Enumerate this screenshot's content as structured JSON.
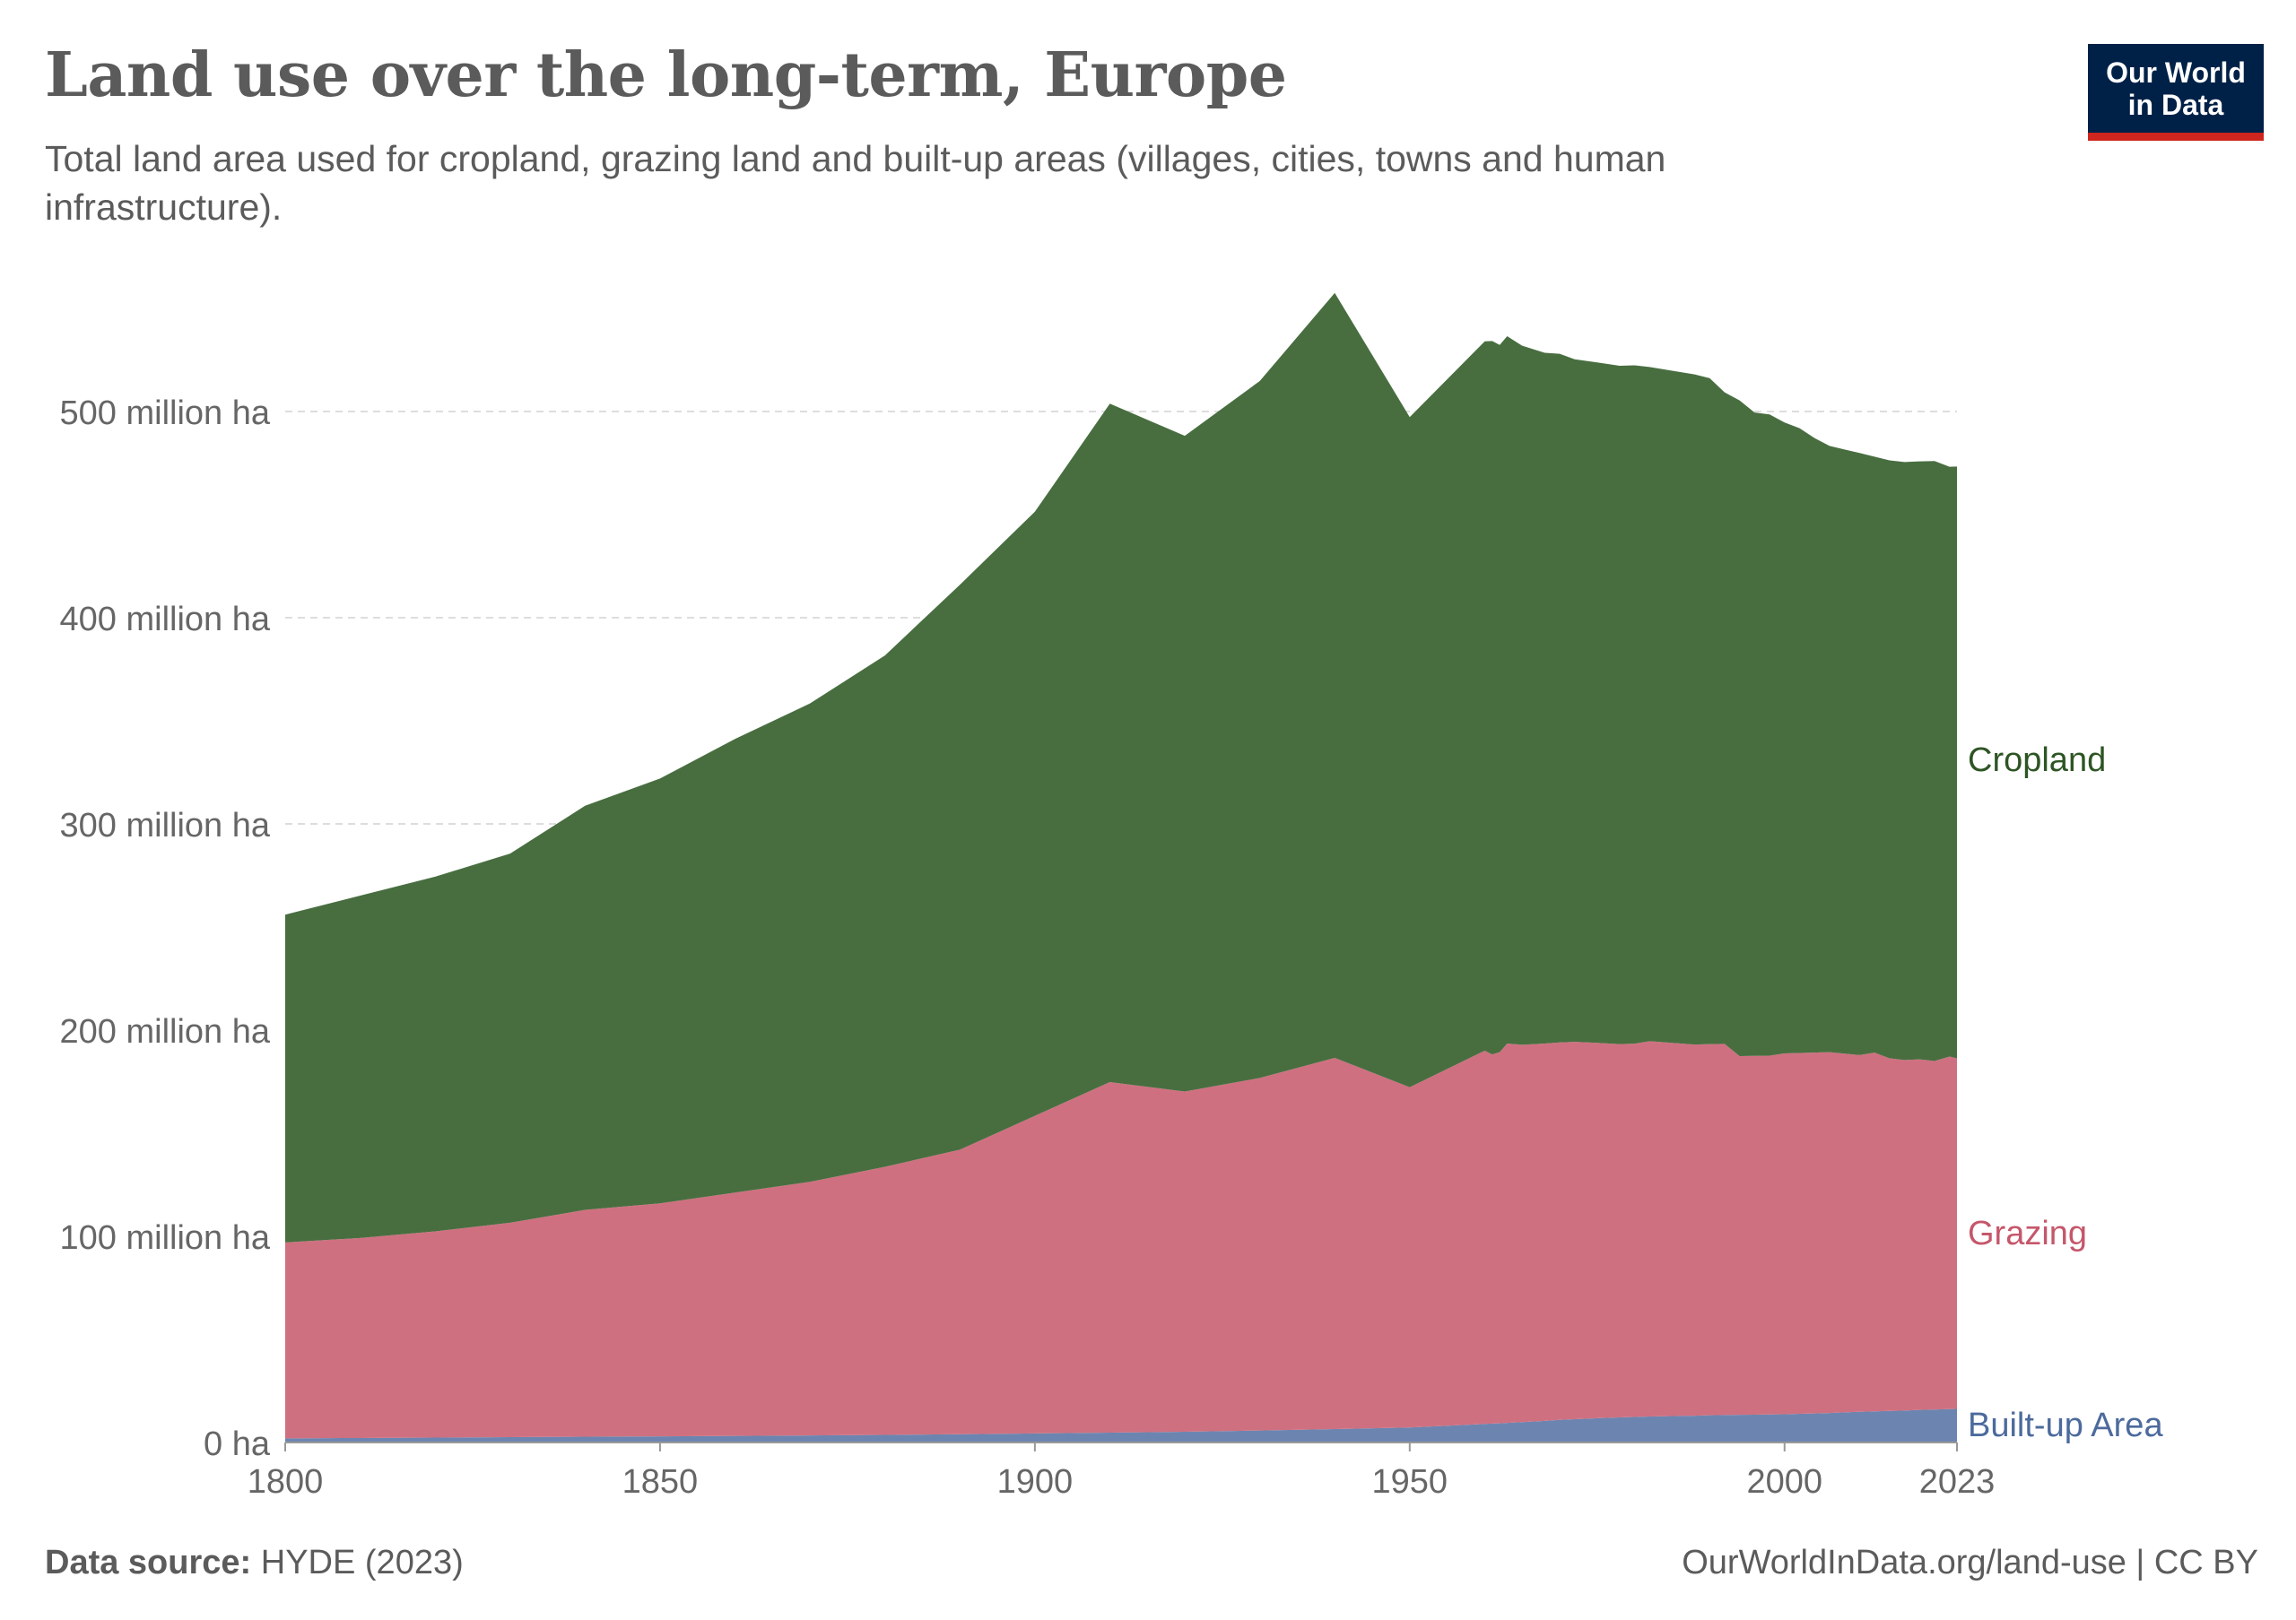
{
  "title": "Land use over the long-term, Europe",
  "subtitle": "Total land area used for cropland, grazing land and built-up areas (villages, cities, towns and human infrastructure).",
  "logo": {
    "line1": "Our World",
    "line2": "in Data"
  },
  "footer": {
    "source_label": "Data source:",
    "source_value": "HYDE (2023)",
    "url": "OurWorldInData.org/land-use | CC BY"
  },
  "chart_data": {
    "type": "area",
    "stacked": true,
    "x_ticks": [
      "1800",
      "1850",
      "1900",
      "1950",
      "2000",
      "2023"
    ],
    "y_ticks": [
      "0 ha",
      "100 million ha",
      "200 million ha",
      "300 million ha",
      "400 million ha",
      "500 million ha"
    ],
    "ylim": [
      0,
      560
    ],
    "xlim": [
      1800,
      2023
    ],
    "unit": "million ha",
    "grid": true,
    "x": [
      1800,
      1810,
      1820,
      1830,
      1840,
      1850,
      1860,
      1870,
      1880,
      1890,
      1900,
      1910,
      1920,
      1930,
      1940,
      1950,
      1960,
      1961,
      1962,
      1963,
      1965,
      1968,
      1970,
      1972,
      1975,
      1978,
      1980,
      1982,
      1985,
      1988,
      1990,
      1992,
      1994,
      1996,
      1998,
      2000,
      2002,
      2004,
      2006,
      2008,
      2010,
      2012,
      2014,
      2016,
      2018,
      2020,
      2022,
      2023
    ],
    "series": [
      {
        "name": "Built-up Area",
        "color": "#6c85b0",
        "label_color": "#4c6a9c",
        "values": [
          2,
          2.2,
          2.4,
          2.6,
          2.8,
          3,
          3.2,
          3.4,
          3.7,
          4,
          4.4,
          4.8,
          5.2,
          5.8,
          6.5,
          7.3,
          9,
          9.2,
          9.3,
          9.5,
          9.9,
          10.5,
          11,
          11.3,
          11.8,
          12.2,
          12.4,
          12.6,
          12.8,
          13,
          13.2,
          13.3,
          13.4,
          13.5,
          13.6,
          13.7,
          13.9,
          14.1,
          14.3,
          14.6,
          14.9,
          15.1,
          15.3,
          15.5,
          15.8,
          16,
          16.2,
          16.3
        ]
      },
      {
        "name": "Grazing",
        "color": "#cf7080",
        "label_color": "#c5576b",
        "values": [
          95,
          97,
          100,
          104,
          110,
          113,
          118,
          123,
          130,
          138,
          154,
          170,
          165,
          171,
          180,
          165,
          181,
          179,
          180,
          184,
          183,
          183,
          183,
          183,
          182,
          181,
          181,
          182,
          181,
          180,
          180,
          180,
          174,
          174,
          174,
          175,
          175,
          175,
          175,
          174,
          173,
          174,
          171,
          170,
          170,
          169,
          171,
          170
        ]
      },
      {
        "name": "Cropland",
        "color": "#486e40",
        "label_color": "#2d5524",
        "values": [
          159,
          166,
          172,
          179,
          196,
          206,
          220,
          232,
          248,
          274,
          293,
          329,
          318,
          338,
          371,
          325,
          344,
          346,
          343,
          343,
          339,
          335,
          334,
          331,
          330,
          329,
          329,
          327,
          326,
          325,
          323,
          316,
          318,
          312,
          311,
          306,
          303,
          298,
          294,
          293,
          292,
          289,
          290,
          290,
          290,
          291,
          286,
          287
        ]
      }
    ]
  }
}
